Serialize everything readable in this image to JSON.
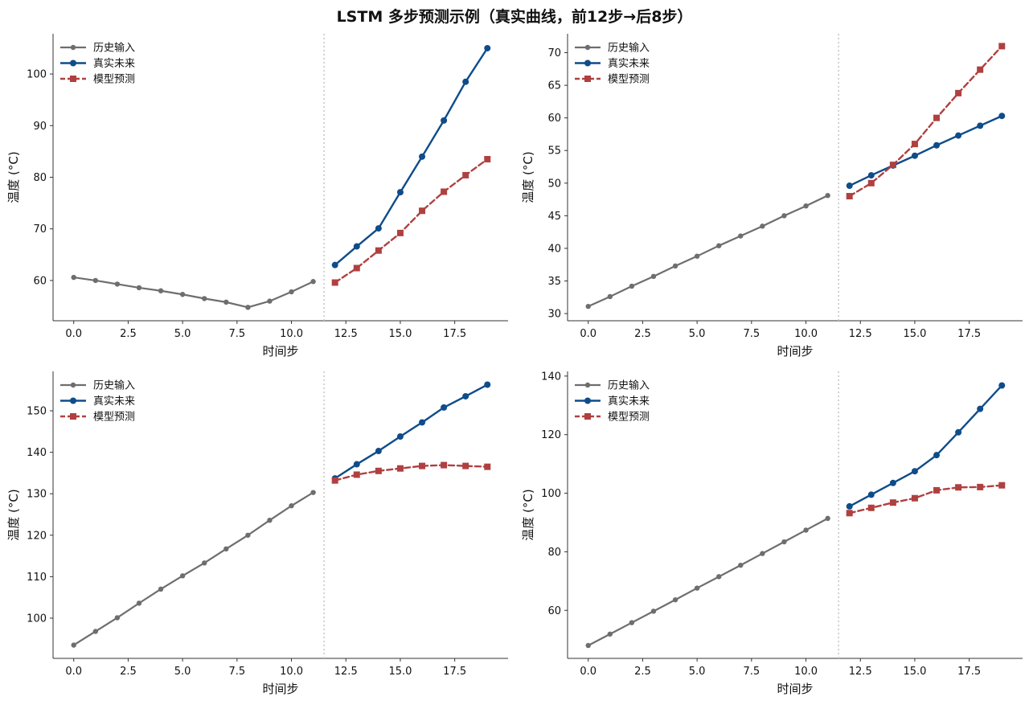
{
  "title": "LSTM 多步预测示例（真实曲线，前12步→后8步）",
  "legend": {
    "history": "历史输入",
    "truth": "真实未来",
    "pred": "模型预测"
  },
  "colors": {
    "history": "#6e6e6e",
    "truth": "#0f4c8a",
    "pred": "#b04040",
    "split": "#c8c8c8"
  },
  "chart_data": [
    {
      "type": "line",
      "xlabel": "时间步",
      "ylabel": "温度 (°C)",
      "xlim": [
        -0.95,
        19.95
      ],
      "ylim": [
        52.2,
        107.8
      ],
      "xticks": [
        0.0,
        2.5,
        5.0,
        7.5,
        10.0,
        12.5,
        15.0,
        17.5
      ],
      "xtick_labels": [
        "0.0",
        "2.5",
        "5.0",
        "7.5",
        "10.0",
        "12.5",
        "15.0",
        "17.5"
      ],
      "yticks": [
        60,
        70,
        80,
        90,
        100
      ],
      "split_x": 11.5,
      "legend_position": "top-left",
      "series": [
        {
          "key": "history",
          "name": "历史输入",
          "x": [
            0,
            1,
            2,
            3,
            4,
            5,
            6,
            7,
            8,
            9,
            10,
            11
          ],
          "y": [
            60.6,
            60.0,
            59.3,
            58.6,
            58.0,
            57.3,
            56.5,
            55.8,
            54.8,
            56.0,
            57.8,
            59.8
          ]
        },
        {
          "key": "truth",
          "name": "真实未来",
          "x": [
            12,
            13,
            14,
            15,
            16,
            17,
            18,
            19
          ],
          "y": [
            63.0,
            66.6,
            70.1,
            77.1,
            84.0,
            91.0,
            98.5,
            105.0
          ]
        },
        {
          "key": "pred",
          "name": "模型预测",
          "x": [
            12,
            13,
            14,
            15,
            16,
            17,
            18,
            19
          ],
          "y": [
            59.6,
            62.4,
            65.8,
            69.2,
            73.5,
            77.2,
            80.4,
            83.5
          ]
        }
      ]
    },
    {
      "type": "line",
      "xlabel": "时间步",
      "ylabel": "温度 (°C)",
      "xlim": [
        -0.95,
        19.95
      ],
      "ylim": [
        28.9,
        72.9
      ],
      "xticks": [
        0.0,
        2.5,
        5.0,
        7.5,
        10.0,
        12.5,
        15.0,
        17.5
      ],
      "xtick_labels": [
        "0.0",
        "2.5",
        "5.0",
        "7.5",
        "10.0",
        "12.5",
        "15.0",
        "17.5"
      ],
      "yticks": [
        30,
        35,
        40,
        45,
        50,
        55,
        60,
        65,
        70
      ],
      "split_x": 11.5,
      "legend_position": "top-left",
      "series": [
        {
          "key": "history",
          "name": "历史输入",
          "x": [
            0,
            1,
            2,
            3,
            4,
            5,
            6,
            7,
            8,
            9,
            10,
            11
          ],
          "y": [
            31.1,
            32.6,
            34.2,
            35.7,
            37.3,
            38.8,
            40.4,
            41.9,
            43.4,
            45.0,
            46.5,
            48.1
          ]
        },
        {
          "key": "truth",
          "name": "真实未来",
          "x": [
            12,
            13,
            14,
            15,
            16,
            17,
            18,
            19
          ],
          "y": [
            49.6,
            51.2,
            52.7,
            54.2,
            55.8,
            57.3,
            58.8,
            60.3
          ]
        },
        {
          "key": "pred",
          "name": "模型预测",
          "x": [
            12,
            13,
            14,
            15,
            16,
            17,
            18,
            19
          ],
          "y": [
            48.0,
            50.0,
            52.8,
            56.0,
            60.0,
            63.8,
            67.4,
            71.0
          ]
        }
      ]
    },
    {
      "type": "line",
      "xlabel": "时间步",
      "ylabel": "温度 (°C)",
      "xlim": [
        -0.95,
        19.95
      ],
      "ylim": [
        90.3,
        159.5
      ],
      "xticks": [
        0.0,
        2.5,
        5.0,
        7.5,
        10.0,
        12.5,
        15.0,
        17.5
      ],
      "xtick_labels": [
        "0.0",
        "2.5",
        "5.0",
        "7.5",
        "10.0",
        "12.5",
        "15.0",
        "17.5"
      ],
      "yticks": [
        100,
        110,
        120,
        130,
        140,
        150
      ],
      "split_x": 11.5,
      "legend_position": "top-left",
      "series": [
        {
          "key": "history",
          "name": "历史输入",
          "x": [
            0,
            1,
            2,
            3,
            4,
            5,
            6,
            7,
            8,
            9,
            10,
            11
          ],
          "y": [
            93.5,
            96.8,
            100.1,
            103.6,
            107.0,
            110.2,
            113.3,
            116.7,
            120.0,
            123.6,
            127.1,
            130.3
          ]
        },
        {
          "key": "truth",
          "name": "真实未来",
          "x": [
            12,
            13,
            14,
            15,
            16,
            17,
            18,
            19
          ],
          "y": [
            133.7,
            137.1,
            140.3,
            143.8,
            147.2,
            150.8,
            153.5,
            156.3
          ]
        },
        {
          "key": "pred",
          "name": "模型预测",
          "x": [
            12,
            13,
            14,
            15,
            16,
            17,
            18,
            19
          ],
          "y": [
            133.2,
            134.6,
            135.5,
            136.1,
            136.7,
            136.9,
            136.7,
            136.5
          ]
        }
      ]
    },
    {
      "type": "line",
      "xlabel": "时间步",
      "ylabel": "温度 (°C)",
      "xlim": [
        -0.95,
        19.95
      ],
      "ylim": [
        43.6,
        141.6
      ],
      "xticks": [
        0.0,
        2.5,
        5.0,
        7.5,
        10.0,
        12.5,
        15.0,
        17.5
      ],
      "xtick_labels": [
        "0.0",
        "2.5",
        "5.0",
        "7.5",
        "10.0",
        "12.5",
        "15.0",
        "17.5"
      ],
      "yticks": [
        60,
        80,
        100,
        120,
        140
      ],
      "split_x": 11.5,
      "legend_position": "top-left",
      "series": [
        {
          "key": "history",
          "name": "历史输入",
          "x": [
            0,
            1,
            2,
            3,
            4,
            5,
            6,
            7,
            8,
            9,
            10,
            11
          ],
          "y": [
            48.0,
            51.9,
            55.8,
            59.7,
            63.6,
            67.6,
            71.5,
            75.4,
            79.4,
            83.4,
            87.4,
            91.4
          ]
        },
        {
          "key": "truth",
          "name": "真实未来",
          "x": [
            12,
            13,
            14,
            15,
            16,
            17,
            18,
            19
          ],
          "y": [
            95.5,
            99.5,
            103.5,
            107.5,
            113.0,
            120.8,
            128.8,
            136.8
          ]
        },
        {
          "key": "pred",
          "name": "模型预测",
          "x": [
            12,
            13,
            14,
            15,
            16,
            17,
            18,
            19
          ],
          "y": [
            93.2,
            95.0,
            96.8,
            98.3,
            101.0,
            102.0,
            102.1,
            102.7
          ]
        }
      ]
    }
  ]
}
